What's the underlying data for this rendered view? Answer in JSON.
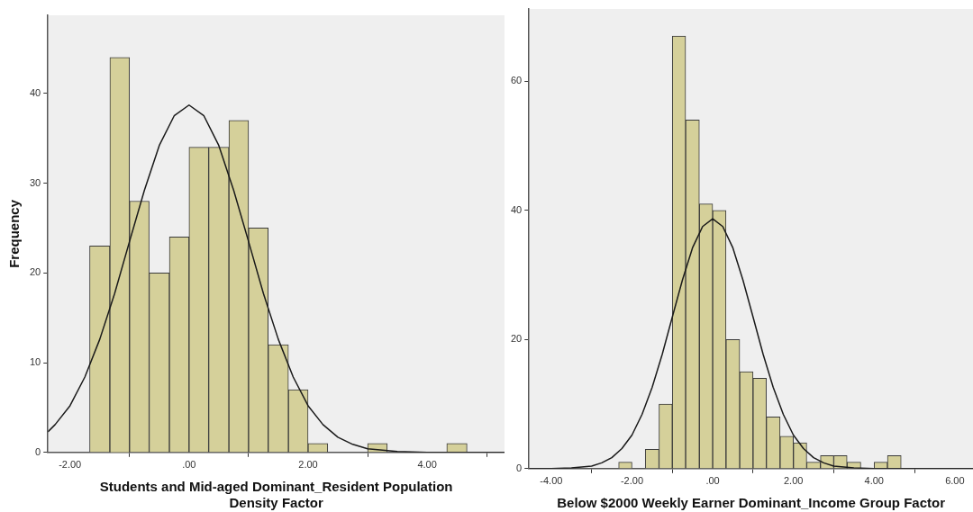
{
  "chart_data": [
    {
      "type": "histogram",
      "xlabel": "Students and Mid-aged Dominant_Resident Population Density Factor",
      "ylabel": "Frequency",
      "color": "#d5d09a",
      "bins": [
        -1.67,
        -1.33,
        -1.0,
        -0.67,
        -0.33,
        0,
        0.33,
        0.67,
        1.0,
        1.33,
        1.67,
        2.0,
        2.33,
        2.67,
        3.0,
        3.33,
        3.67,
        4.0,
        4.33,
        4.67
      ],
      "values": [
        23,
        44,
        28,
        20,
        24,
        34,
        34,
        37,
        25,
        12,
        7,
        1,
        0,
        0,
        1,
        0,
        0,
        0,
        1
      ],
      "series": [
        {
          "type": "line",
          "color": "#1a1a1a",
          "x": [
            -2.37,
            -2.25,
            -2,
            -1.75,
            -1.5,
            -1.25,
            -1,
            -0.75,
            -0.5,
            -0.25,
            0,
            0.25,
            0.5,
            0.75,
            1,
            1.25,
            1.5,
            1.75,
            2,
            2.25,
            2.5,
            2.75,
            3,
            3.5,
            4,
            5,
            5.3
          ],
          "values": [
            2.3,
            3.1,
            5.2,
            8.4,
            12.6,
            17.7,
            23.5,
            29.2,
            34.2,
            37.5,
            38.7,
            37.5,
            34.2,
            29.2,
            23.5,
            17.7,
            12.6,
            8.4,
            5.2,
            3.1,
            1.7,
            0.9,
            0.4,
            0.1,
            0,
            0,
            0
          ]
        }
      ],
      "xlim": [
        -2.37,
        5.3
      ],
      "ylim": [
        0,
        48.7
      ],
      "xticks": [
        {
          "value": -2,
          "label": "-2.00"
        },
        {
          "value": 0,
          "label": ".00"
        },
        {
          "value": 2,
          "label": "2.00"
        },
        {
          "value": 4,
          "label": "4.00"
        }
      ],
      "yticks": [
        0,
        10,
        20,
        30,
        40
      ]
    },
    {
      "type": "histogram",
      "xlabel": "Below $2000 Weekly Earner Dominant_Income Group Factor",
      "color": "#d5d09a",
      "bins": [
        -2.33,
        -2.0,
        -1.67,
        -1.33,
        -1.0,
        -0.67,
        -0.33,
        0,
        0.33,
        0.67,
        1.0,
        1.33,
        1.67,
        2.0,
        2.33,
        2.67,
        3.0,
        3.33,
        3.67,
        4.0,
        4.33,
        4.67
      ],
      "values": [
        1,
        0,
        3,
        10,
        67,
        54,
        41,
        40,
        20,
        15,
        14,
        8,
        5,
        4,
        1,
        2,
        2,
        1,
        0,
        1,
        2
      ],
      "series": [
        {
          "type": "line",
          "color": "#1a1a1a",
          "x": [
            -4.55,
            -4,
            -3.5,
            -3,
            -2.75,
            -2.5,
            -2.25,
            -2,
            -1.75,
            -1.5,
            -1.25,
            -1,
            -0.75,
            -0.5,
            -0.25,
            0,
            0.25,
            0.5,
            0.75,
            1,
            1.25,
            1.5,
            1.75,
            2,
            2.25,
            2.5,
            2.75,
            3,
            3.5,
            4,
            5,
            6.45
          ],
          "values": [
            0,
            0,
            0.1,
            0.4,
            0.9,
            1.7,
            3.1,
            5.2,
            8.4,
            12.6,
            17.7,
            23.5,
            29.2,
            34.2,
            37.5,
            38.7,
            37.5,
            34.2,
            29.2,
            23.5,
            17.7,
            12.6,
            8.4,
            5.2,
            3.1,
            1.7,
            0.9,
            0.4,
            0.1,
            0,
            0,
            0
          ]
        }
      ],
      "xlim": [
        -4.55,
        6.45
      ],
      "ylim": [
        0,
        71.2
      ],
      "xticks": [
        {
          "value": -4,
          "label": "-4.00"
        },
        {
          "value": -2,
          "label": "-2.00"
        },
        {
          "value": 0,
          "label": ".00"
        },
        {
          "value": 2,
          "label": "2.00"
        },
        {
          "value": 4,
          "label": "4.00"
        },
        {
          "value": 6,
          "label": "6.00"
        }
      ],
      "yticks": [
        0,
        20,
        40,
        60
      ]
    }
  ]
}
